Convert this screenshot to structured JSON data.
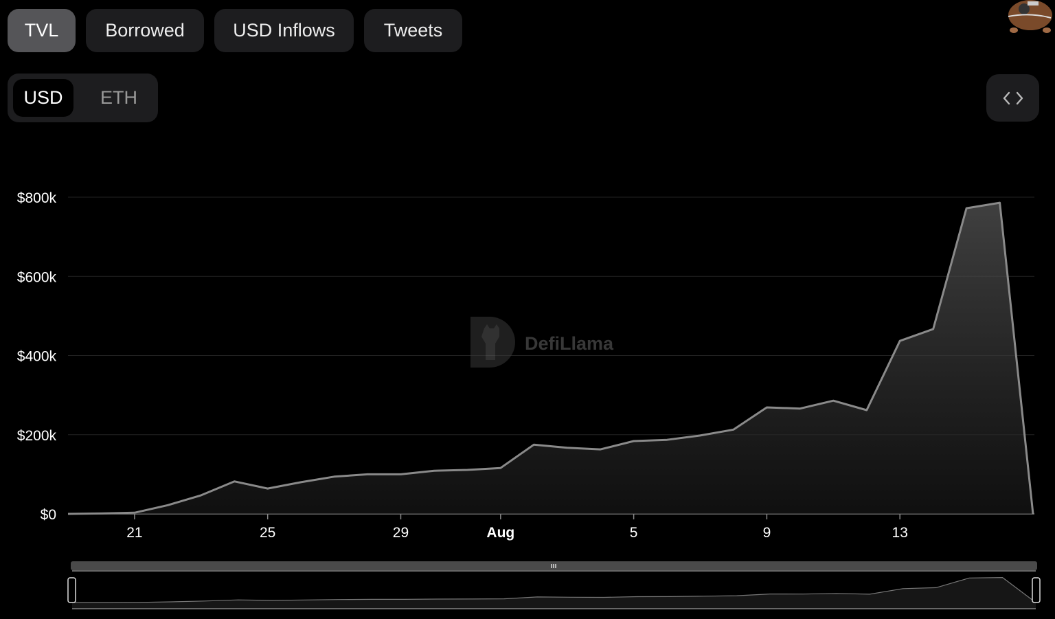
{
  "tabs": [
    {
      "label": "TVL",
      "active": true
    },
    {
      "label": "Borrowed",
      "active": false
    },
    {
      "label": "USD Inflows",
      "active": false
    },
    {
      "label": "Tweets",
      "active": false
    }
  ],
  "currency_toggle": {
    "options": [
      "USD",
      "ETH"
    ],
    "selected": "USD"
  },
  "embed_button": {
    "icon": "code-icon"
  },
  "avatar": {
    "icon": "avatar-image"
  },
  "watermark": {
    "text": "DefiLlama"
  },
  "colors": {
    "line": "#8a8a8a",
    "background": "#000000",
    "tab_active": "#555558",
    "tab_inactive": "#1d1d1f"
  },
  "chart_data": {
    "type": "area",
    "title": "",
    "xlabel": "",
    "ylabel": "",
    "ylim": [
      0,
      800000
    ],
    "y_ticks": [
      {
        "value": 0,
        "label": "$0"
      },
      {
        "value": 200000,
        "label": "$200k"
      },
      {
        "value": 400000,
        "label": "$400k"
      },
      {
        "value": 600000,
        "label": "$600k"
      },
      {
        "value": 800000,
        "label": "$800k"
      }
    ],
    "x_ticks": [
      {
        "date": "07-21",
        "label": "21",
        "bold": false
      },
      {
        "date": "07-25",
        "label": "25",
        "bold": false
      },
      {
        "date": "07-29",
        "label": "29",
        "bold": false
      },
      {
        "date": "08-01",
        "label": "Aug",
        "bold": true
      },
      {
        "date": "08-05",
        "label": "5",
        "bold": false
      },
      {
        "date": "08-09",
        "label": "9",
        "bold": false
      },
      {
        "date": "08-13",
        "label": "13",
        "bold": false
      }
    ],
    "grid": true,
    "legend": "none",
    "x": [
      "07-19",
      "07-20",
      "07-21",
      "07-22",
      "07-23",
      "07-24",
      "07-25",
      "07-26",
      "07-27",
      "07-28",
      "07-29",
      "07-30",
      "07-31",
      "08-01",
      "08-02",
      "08-03",
      "08-04",
      "08-05",
      "08-06",
      "08-07",
      "08-08",
      "08-09",
      "08-10",
      "08-11",
      "08-12",
      "08-13",
      "08-14",
      "08-15",
      "08-16",
      "08-17"
    ],
    "values": [
      0,
      1000,
      3000,
      22000,
      47000,
      82000,
      64000,
      80000,
      94000,
      100000,
      100000,
      109000,
      111000,
      116000,
      175000,
      167000,
      163000,
      184000,
      187000,
      198000,
      213000,
      269000,
      266000,
      286000,
      262000,
      437000,
      467000,
      772000,
      786000,
      0
    ]
  }
}
